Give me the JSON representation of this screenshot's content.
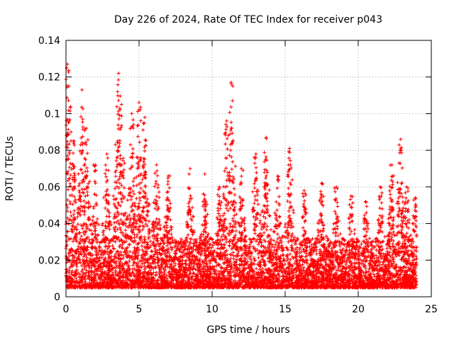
{
  "chart_data": {
    "type": "scatter",
    "title": "Day 226 of 2024, Rate Of TEC Index for receiver p043",
    "xlabel": "GPS time / hours",
    "ylabel": "ROTI / TECUs",
    "xlim": [
      0,
      25
    ],
    "ylim": [
      0,
      0.14
    ],
    "xticks": [
      0,
      5,
      10,
      15,
      20,
      25
    ],
    "xtick_labels": [
      "0",
      "5",
      "10",
      "15",
      "20",
      "25"
    ],
    "yticks": [
      0,
      0.02,
      0.04,
      0.06,
      0.08,
      0.1,
      0.12,
      0.14
    ],
    "ytick_labels": [
      "0",
      "0.02",
      "0.04",
      "0.06",
      "0.08",
      "0.1",
      "0.12",
      "0.14"
    ],
    "grid": true,
    "marker": "plus",
    "color": "#ff0000",
    "series": [
      {
        "name": "ROTI",
        "envelope_note": "dense scatter; approximate local maxima read from the plot",
        "peaks": [
          {
            "x": 0.1,
            "y": 0.127
          },
          {
            "x": 0.2,
            "y": 0.115
          },
          {
            "x": 0.5,
            "y": 0.085
          },
          {
            "x": 1.1,
            "y": 0.113
          },
          {
            "x": 1.4,
            "y": 0.092
          },
          {
            "x": 2.0,
            "y": 0.072
          },
          {
            "x": 2.8,
            "y": 0.078
          },
          {
            "x": 3.6,
            "y": 0.122
          },
          {
            "x": 3.8,
            "y": 0.105
          },
          {
            "x": 4.5,
            "y": 0.1
          },
          {
            "x": 5.0,
            "y": 0.106
          },
          {
            "x": 5.4,
            "y": 0.098
          },
          {
            "x": 6.2,
            "y": 0.072
          },
          {
            "x": 7.0,
            "y": 0.066
          },
          {
            "x": 8.5,
            "y": 0.07
          },
          {
            "x": 9.5,
            "y": 0.067
          },
          {
            "x": 10.5,
            "y": 0.06
          },
          {
            "x": 11.0,
            "y": 0.096
          },
          {
            "x": 11.3,
            "y": 0.117
          },
          {
            "x": 12.0,
            "y": 0.07
          },
          {
            "x": 13.0,
            "y": 0.078
          },
          {
            "x": 13.7,
            "y": 0.087
          },
          {
            "x": 14.5,
            "y": 0.066
          },
          {
            "x": 15.3,
            "y": 0.081
          },
          {
            "x": 16.3,
            "y": 0.058
          },
          {
            "x": 17.5,
            "y": 0.062
          },
          {
            "x": 18.5,
            "y": 0.06
          },
          {
            "x": 19.5,
            "y": 0.055
          },
          {
            "x": 20.5,
            "y": 0.052
          },
          {
            "x": 21.5,
            "y": 0.06
          },
          {
            "x": 22.3,
            "y": 0.072
          },
          {
            "x": 22.9,
            "y": 0.086
          },
          {
            "x": 23.3,
            "y": 0.06
          },
          {
            "x": 23.9,
            "y": 0.054
          }
        ],
        "baseline_range": [
          0.005,
          0.03
        ]
      }
    ]
  }
}
